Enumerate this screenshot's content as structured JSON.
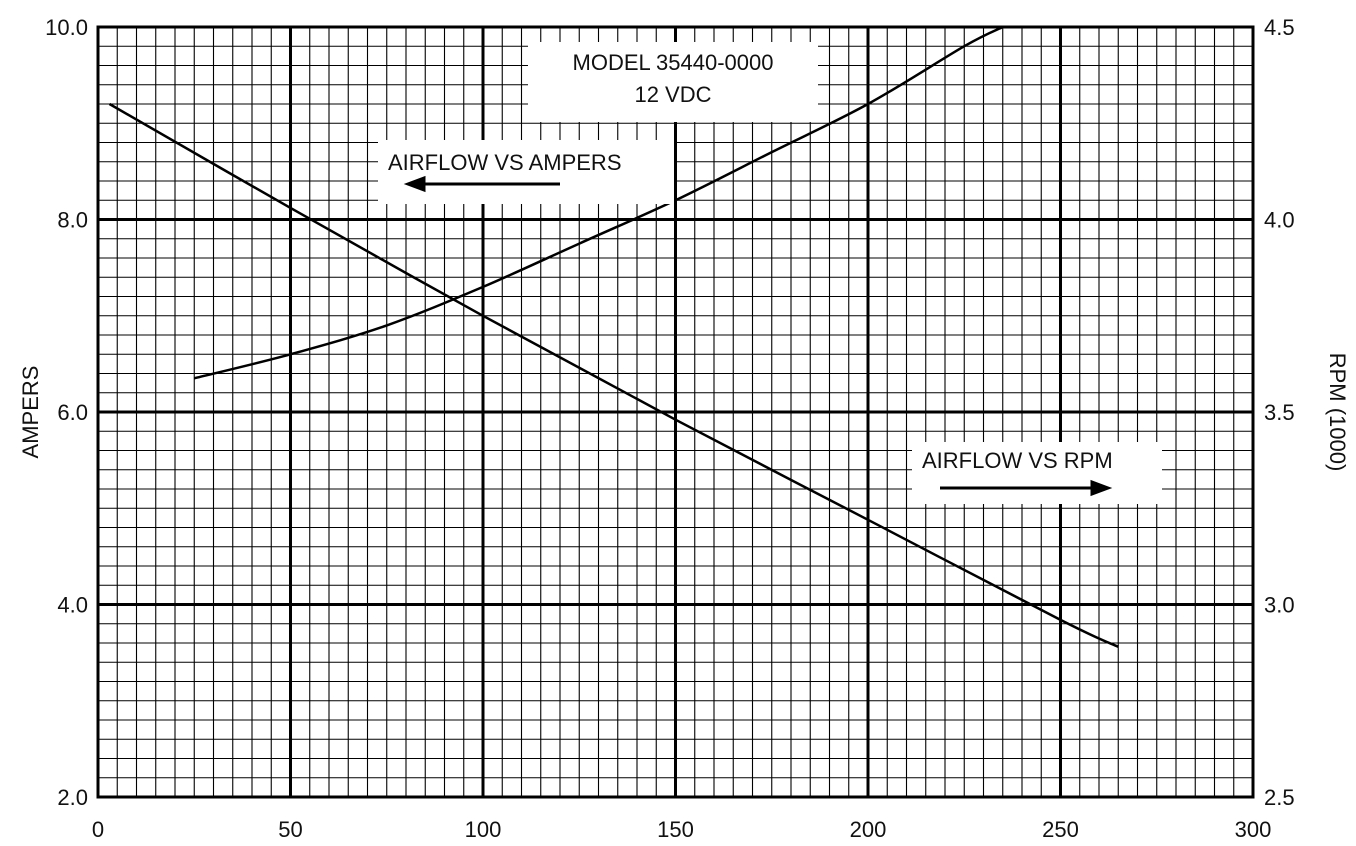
{
  "chart_data": {
    "type": "line",
    "ylabel": "AMPERS",
    "y2label": "RPM (1000)",
    "xlim": [
      0,
      300
    ],
    "ylim": [
      2.0,
      10.0
    ],
    "y2lim": [
      2.5,
      4.5
    ],
    "x_ticks": [
      "0",
      "50",
      "100",
      "150",
      "200",
      "250",
      "300"
    ],
    "y_ticks": [
      "2.0",
      "4.0",
      "6.0",
      "8.0",
      "10.0"
    ],
    "y2_ticks": [
      "2.5",
      "3.0",
      "3.5",
      "4.0",
      "4.5"
    ],
    "grid": true,
    "annotations": {
      "model_line1": "MODEL 35440-0000",
      "model_line2": "12 VDC",
      "amps_label": "AIRFLOW VS AMPERS",
      "rpm_label": "AIRFLOW VS RPM"
    },
    "series": [
      {
        "axis": "right",
        "x": [
          3,
          50,
          100,
          150,
          200,
          250,
          265
        ],
        "values": [
          4.3,
          4.03,
          3.75,
          3.48,
          3.22,
          2.96,
          2.89
        ]
      },
      {
        "axis": "left",
        "x": [
          25,
          50,
          75,
          100,
          125,
          150,
          175,
          200,
          225,
          235
        ],
        "values": [
          6.35,
          6.6,
          6.9,
          7.3,
          7.75,
          8.2,
          8.7,
          9.2,
          9.8,
          10.0
        ]
      }
    ]
  }
}
